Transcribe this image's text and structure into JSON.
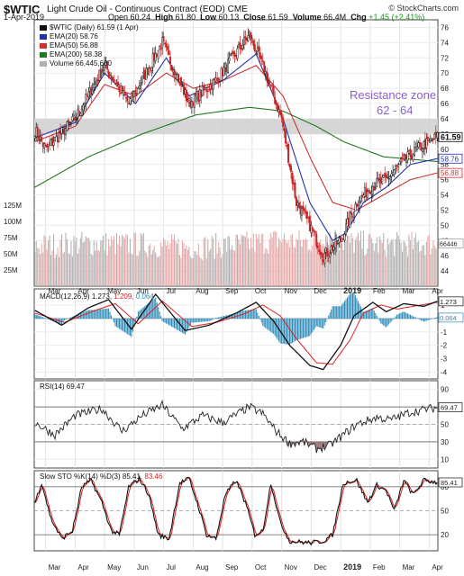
{
  "header": {
    "symbol": "$WTIC",
    "name": "Light Crude Oil - Continuous Contract (EOD)",
    "exchange": "CME",
    "brand": "© StockCharts.com",
    "date": "1-Apr-2019",
    "open_label": "Open",
    "open": "60.24",
    "high_label": "High",
    "high": "61.80",
    "low_label": "Low",
    "low": "60.13",
    "close_label": "Close",
    "close": "61.59",
    "volume_label": "Volume",
    "volume": "66.4M",
    "chg_label": "Chg",
    "chg": "+1.45 (+2.41%)"
  },
  "legend": {
    "price": "$WTIC (Daily) 61.59 (1 Apr)",
    "ema20": "EMA(20) 58.76",
    "ema50": "EMA(50) 56.88",
    "ema200": "EMA(200) 58.38",
    "volume": "Volume 66,445,600"
  },
  "annotation": {
    "text": "Resistance zone",
    "range_text": "62 - 64",
    "low": 62,
    "high": 64
  },
  "panels": {
    "macd_title": "MACD(12,26,9)",
    "macd_v1": "1.273,",
    "macd_v2": "1.209,",
    "macd_v3": "0.064",
    "rsi_title": "RSI(14) 69.47",
    "sto_title": "Slow STO %K(14) %D(3)",
    "sto_v1": "85.41,",
    "sto_v2": "83.46"
  },
  "colors": {
    "up": "#111111",
    "down": "#cc2222",
    "ema20": "#2233aa",
    "ema50": "#cc3333",
    "ema200": "#227722",
    "vol_up": "#b0b0b0",
    "vol_down": "#e8a8a8",
    "resistance": "#cfcfcf",
    "resistance_text": "#8a5fd0",
    "macd": "#111111",
    "signal": "#dd2222",
    "histogram": "#2a8ab8",
    "rsi": "#222222",
    "rsi_fill": "#8e6a6a"
  },
  "x_axis": {
    "months": [
      "Mar",
      "Apr",
      "May",
      "Jun",
      "Jul",
      "Aug",
      "Sep",
      "Oct",
      "Nov",
      "Dec",
      "2019",
      "Feb",
      "Mar",
      "Apr"
    ],
    "month_index": [
      8,
      30,
      52,
      74,
      96,
      118,
      140,
      162,
      184,
      206,
      228,
      250,
      272,
      294
    ]
  },
  "chart_data": [
    {
      "type": "candlestick",
      "title": "$WTIC Light Crude Oil - Continuous Contract (EOD) CME",
      "ylim": [
        42,
        77
      ],
      "y_ticks": [
        44,
        46,
        48,
        50,
        52,
        54,
        56,
        58,
        60,
        62,
        64,
        66,
        68,
        70,
        72,
        74,
        76
      ],
      "last_value": 61.59,
      "value_tags": [
        "61.59",
        "58.76",
        "56.88"
      ],
      "close_anchors": [
        [
          0,
          62.5
        ],
        [
          8,
          60
        ],
        [
          30,
          64
        ],
        [
          52,
          71
        ],
        [
          70,
          66
        ],
        [
          95,
          74
        ],
        [
          105,
          70
        ],
        [
          115,
          66
        ],
        [
          135,
          69
        ],
        [
          160,
          75
        ],
        [
          172,
          70
        ],
        [
          184,
          64
        ],
        [
          195,
          53
        ],
        [
          205,
          50
        ],
        [
          215,
          46
        ],
        [
          228,
          48
        ],
        [
          240,
          53
        ],
        [
          250,
          55
        ],
        [
          262,
          56
        ],
        [
          272,
          58
        ],
        [
          285,
          60
        ],
        [
          300,
          61.59
        ]
      ],
      "ema20_anchors": [
        [
          0,
          61.5
        ],
        [
          30,
          63.5
        ],
        [
          52,
          70
        ],
        [
          75,
          66
        ],
        [
          98,
          72
        ],
        [
          115,
          67
        ],
        [
          140,
          69
        ],
        [
          165,
          72.5
        ],
        [
          185,
          64
        ],
        [
          205,
          53
        ],
        [
          222,
          48
        ],
        [
          232,
          49
        ],
        [
          245,
          53
        ],
        [
          262,
          55
        ],
        [
          280,
          58
        ],
        [
          300,
          58.76
        ]
      ],
      "ema50_anchors": [
        [
          0,
          61
        ],
        [
          30,
          63
        ],
        [
          52,
          68.5
        ],
        [
          75,
          67
        ],
        [
          98,
          70
        ],
        [
          118,
          68
        ],
        [
          140,
          69
        ],
        [
          165,
          71
        ],
        [
          185,
          67
        ],
        [
          205,
          59
        ],
        [
          222,
          53
        ],
        [
          240,
          52
        ],
        [
          260,
          54
        ],
        [
          280,
          56
        ],
        [
          300,
          56.88
        ]
      ],
      "ema200_anchors": [
        [
          0,
          55
        ],
        [
          40,
          59
        ],
        [
          80,
          62
        ],
        [
          120,
          64.5
        ],
        [
          160,
          65.5
        ],
        [
          185,
          65
        ],
        [
          210,
          63
        ],
        [
          230,
          61
        ],
        [
          260,
          59
        ],
        [
          300,
          58.38
        ]
      ],
      "resistance_zone": [
        62,
        64
      ]
    },
    {
      "type": "bar",
      "title": "Volume",
      "y_tick_labels": [
        "25M",
        "50M",
        "75M",
        "100M",
        "125M"
      ],
      "y_ticks": [
        25,
        50,
        75,
        100,
        125
      ],
      "ylim": [
        0,
        125
      ],
      "value_tag": "66446",
      "volume_anchors": [
        [
          0,
          62
        ],
        [
          40,
          66
        ],
        [
          80,
          64
        ],
        [
          120,
          60
        ],
        [
          160,
          66
        ],
        [
          184,
          72
        ],
        [
          200,
          68
        ],
        [
          210,
          70
        ],
        [
          214,
          78
        ],
        [
          218,
          82
        ],
        [
          222,
          75
        ],
        [
          230,
          68
        ],
        [
          260,
          64
        ],
        [
          300,
          66
        ]
      ]
    },
    {
      "type": "line",
      "title": "MACD(12,26,9)",
      "ylim": [
        -4.5,
        2.2
      ],
      "y_ticks": [
        -4,
        -3,
        -2,
        -1,
        0,
        1
      ],
      "value_tags": [
        "1.273",
        "0.064"
      ],
      "macd_anchors": [
        [
          0,
          0.6
        ],
        [
          20,
          -0.5
        ],
        [
          40,
          0.8
        ],
        [
          55,
          1.4
        ],
        [
          72,
          -0.8
        ],
        [
          90,
          1.8
        ],
        [
          112,
          -0.9
        ],
        [
          130,
          -0.5
        ],
        [
          150,
          0.4
        ],
        [
          165,
          1.2
        ],
        [
          178,
          -0.2
        ],
        [
          190,
          -2
        ],
        [
          205,
          -3.5
        ],
        [
          215,
          -3.8
        ],
        [
          228,
          -2
        ],
        [
          238,
          0.2
        ],
        [
          252,
          1.2
        ],
        [
          262,
          0.5
        ],
        [
          275,
          1.1
        ],
        [
          290,
          0.9
        ],
        [
          300,
          1.273
        ]
      ],
      "signal_anchors": [
        [
          0,
          0.4
        ],
        [
          22,
          -0.3
        ],
        [
          45,
          0.6
        ],
        [
          60,
          1.1
        ],
        [
          77,
          -0.4
        ],
        [
          95,
          1.3
        ],
        [
          117,
          -0.6
        ],
        [
          135,
          -0.3
        ],
        [
          155,
          0.3
        ],
        [
          170,
          1.0
        ],
        [
          183,
          0.2
        ],
        [
          195,
          -1.5
        ],
        [
          210,
          -3.3
        ],
        [
          222,
          -3.4
        ],
        [
          235,
          -1.6
        ],
        [
          245,
          0.4
        ],
        [
          258,
          1.0
        ],
        [
          270,
          0.7
        ],
        [
          282,
          0.9
        ],
        [
          300,
          1.209
        ]
      ]
    },
    {
      "type": "line",
      "title": "RSI(14) 69.47",
      "ylim": [
        0,
        100
      ],
      "y_ticks": [
        10,
        30,
        50,
        70,
        90
      ],
      "value_tag": "69.47",
      "rsi_anchors": [
        [
          0,
          52
        ],
        [
          15,
          38
        ],
        [
          30,
          60
        ],
        [
          50,
          68
        ],
        [
          65,
          42
        ],
        [
          80,
          60
        ],
        [
          95,
          72
        ],
        [
          110,
          45
        ],
        [
          125,
          60
        ],
        [
          140,
          52
        ],
        [
          160,
          70
        ],
        [
          170,
          62
        ],
        [
          180,
          42
        ],
        [
          190,
          28
        ],
        [
          200,
          30
        ],
        [
          210,
          22
        ],
        [
          220,
          26
        ],
        [
          230,
          38
        ],
        [
          240,
          50
        ],
        [
          255,
          58
        ],
        [
          265,
          55
        ],
        [
          280,
          64
        ],
        [
          300,
          69.47
        ]
      ]
    },
    {
      "type": "line",
      "title": "Slow STO %K(14) %D(3)",
      "ylim": [
        0,
        100
      ],
      "y_ticks": [
        20,
        50,
        80
      ],
      "value_tags": [
        "85.41"
      ],
      "k_anchors": [
        [
          0,
          60
        ],
        [
          5,
          85
        ],
        [
          12,
          40
        ],
        [
          20,
          15
        ],
        [
          28,
          25
        ],
        [
          35,
          80
        ],
        [
          42,
          88
        ],
        [
          50,
          60
        ],
        [
          57,
          25
        ],
        [
          63,
          20
        ],
        [
          70,
          80
        ],
        [
          78,
          90
        ],
        [
          85,
          70
        ],
        [
          92,
          20
        ],
        [
          100,
          15
        ],
        [
          108,
          85
        ],
        [
          115,
          90
        ],
        [
          122,
          55
        ],
        [
          128,
          20
        ],
        [
          135,
          15
        ],
        [
          142,
          70
        ],
        [
          150,
          88
        ],
        [
          157,
          60
        ],
        [
          164,
          20
        ],
        [
          170,
          25
        ],
        [
          176,
          85
        ],
        [
          183,
          35
        ],
        [
          190,
          12
        ],
        [
          205,
          10
        ],
        [
          215,
          12
        ],
        [
          222,
          20
        ],
        [
          230,
          85
        ],
        [
          240,
          88
        ],
        [
          248,
          60
        ],
        [
          255,
          82
        ],
        [
          262,
          75
        ],
        [
          268,
          50
        ],
        [
          275,
          88
        ],
        [
          282,
          70
        ],
        [
          290,
          88
        ],
        [
          300,
          85.41
        ]
      ]
    }
  ]
}
